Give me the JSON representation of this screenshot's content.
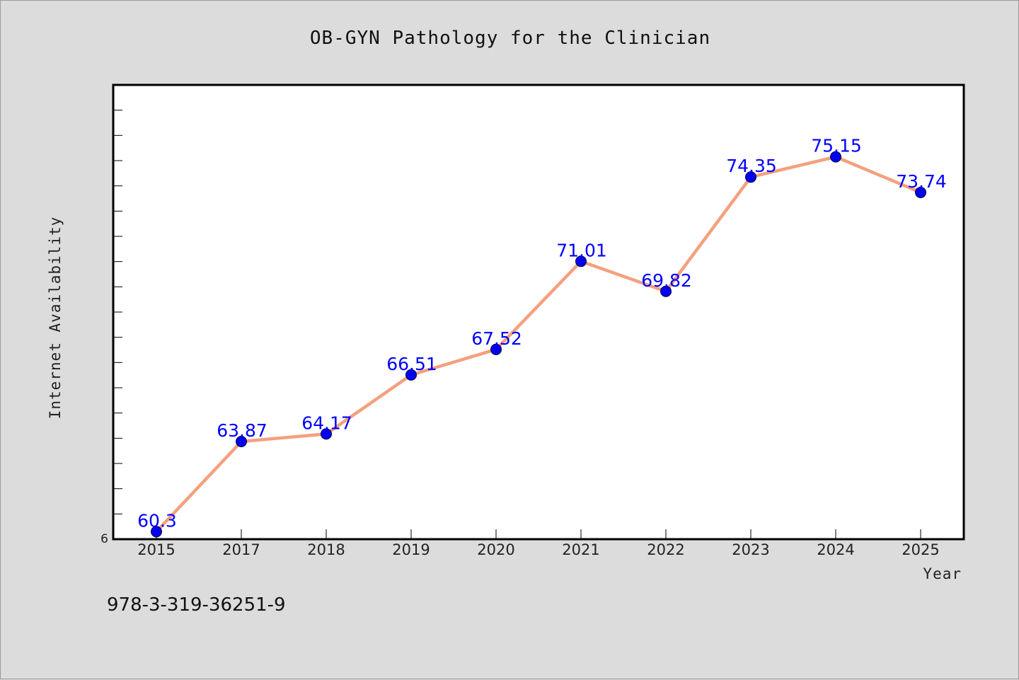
{
  "chart_data": {
    "type": "line",
    "title": "OB-GYN Pathology for the Clinician",
    "xlabel": "Year",
    "ylabel": "Internet Availability",
    "categories": [
      "2015",
      "2017",
      "2018",
      "2019",
      "2020",
      "2021",
      "2022",
      "2023",
      "2024",
      "2025"
    ],
    "series": [
      {
        "values": [
          60.3,
          63.87,
          64.17,
          66.51,
          67.52,
          71.01,
          69.82,
          74.35,
          75.15,
          73.74
        ],
        "labels": [
          "60.3",
          "63.87",
          "64.17",
          "66.51",
          "67.52",
          "71.01",
          "69.82",
          "74.35",
          "75.15",
          "73.74"
        ],
        "line_color": "#f4a07e",
        "marker_color": "#0000ee"
      }
    ],
    "ylim": [
      60,
      78
    ],
    "y_tick_label": "6",
    "grid": false,
    "legend": "none",
    "footer": "978-3-319-36251-9"
  }
}
